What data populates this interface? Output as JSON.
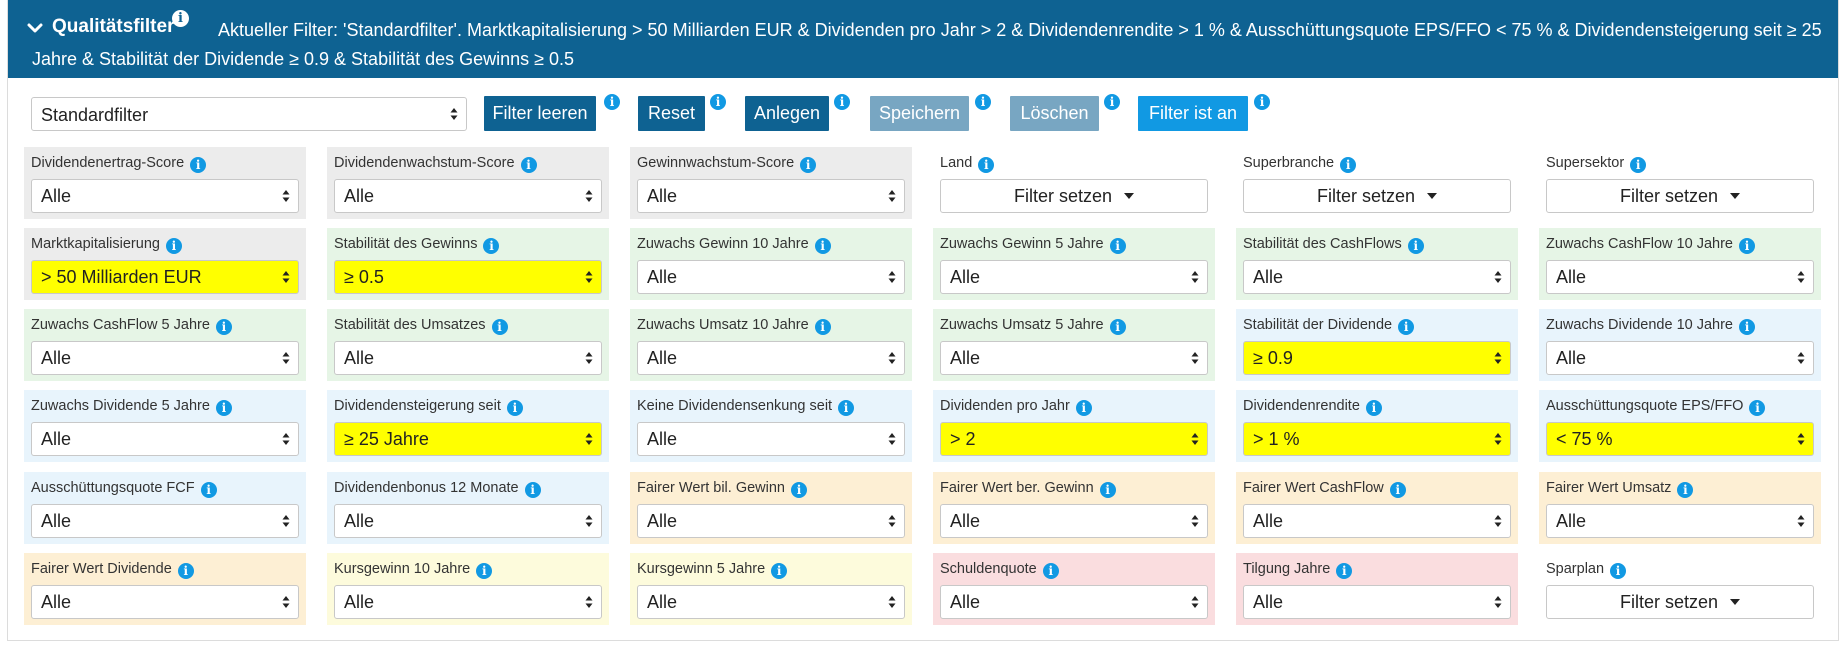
{
  "header": {
    "title": "Qualitätsfilter",
    "filter_line1": "Aktueller Filter: 'Standardfilter'. Marktkapitalisierung > 50 Milliarden EUR & Dividenden pro Jahr > 2 & Dividendenrendite > 1 % & Ausschüttungsquote EPS/FFO < 75 % & Dividendensteigerung seit ≥ 25",
    "filter_line2": "Jahre & Stabilität der Dividende ≥ 0.9 & Stabilität des Gewinns ≥ 0.5",
    "background": "#0e6292"
  },
  "toolbar": {
    "preset_value": "Standardfilter",
    "buttons": [
      {
        "label": "Filter leeren"
      },
      {
        "label": "Reset"
      },
      {
        "label": "Anlegen"
      },
      {
        "label": "Speichern"
      },
      {
        "label": "Löschen"
      },
      {
        "label": "Filter ist an"
      }
    ]
  },
  "info_glyph": "i",
  "filters": [
    {
      "label": "Dividendenertrag-Score",
      "value": "Alle"
    },
    {
      "label": "Dividendenwachstum-Score",
      "value": "Alle"
    },
    {
      "label": "Gewinnwachstum-Score",
      "value": "Alle"
    },
    {
      "label": "Land",
      "value": "Filter setzen"
    },
    {
      "label": "Superbranche",
      "value": "Filter setzen"
    },
    {
      "label": "Supersektor",
      "value": "Filter setzen"
    },
    {
      "label": "Marktkapitalisierung",
      "value": "> 50 Milliarden EUR"
    },
    {
      "label": "Stabilität des Gewinns",
      "value": "≥ 0.5"
    },
    {
      "label": "Zuwachs Gewinn 10 Jahre",
      "value": "Alle"
    },
    {
      "label": "Zuwachs Gewinn 5 Jahre",
      "value": "Alle"
    },
    {
      "label": "Stabilität des CashFlows",
      "value": "Alle"
    },
    {
      "label": "Zuwachs CashFlow 10 Jahre",
      "value": "Alle"
    },
    {
      "label": "Zuwachs CashFlow 5 Jahre",
      "value": "Alle"
    },
    {
      "label": "Stabilität des Umsatzes",
      "value": "Alle"
    },
    {
      "label": "Zuwachs Umsatz 10 Jahre",
      "value": "Alle"
    },
    {
      "label": "Zuwachs Umsatz 5 Jahre",
      "value": "Alle"
    },
    {
      "label": "Stabilität der Dividende",
      "value": "≥ 0.9"
    },
    {
      "label": "Zuwachs Dividende 10 Jahre",
      "value": "Alle"
    },
    {
      "label": "Zuwachs Dividende 5 Jahre",
      "value": "Alle"
    },
    {
      "label": "Dividendensteigerung seit",
      "value": "≥ 25 Jahre"
    },
    {
      "label": "Keine Dividendensenkung seit",
      "value": "Alle"
    },
    {
      "label": "Dividenden pro Jahr",
      "value": "> 2"
    },
    {
      "label": "Dividendenrendite",
      "value": "> 1 %"
    },
    {
      "label": "Ausschüttungsquote EPS/FFO",
      "value": "< 75 %"
    },
    {
      "label": "Ausschüttungsquote FCF",
      "value": "Alle"
    },
    {
      "label": "Dividendenbonus 12 Monate",
      "value": "Alle"
    },
    {
      "label": "Fairer Wert bil. Gewinn",
      "value": "Alle"
    },
    {
      "label": "Fairer Wert ber. Gewinn",
      "value": "Alle"
    },
    {
      "label": "Fairer Wert CashFlow",
      "value": "Alle"
    },
    {
      "label": "Fairer Wert Umsatz",
      "value": "Alle"
    },
    {
      "label": "Fairer Wert Dividende",
      "value": "Alle"
    },
    {
      "label": "Kursgewinn 10 Jahre",
      "value": "Alle"
    },
    {
      "label": "Kursgewinn 5 Jahre",
      "value": "Alle"
    },
    {
      "label": "Schuldenquote",
      "value": "Alle"
    },
    {
      "label": "Tilgung Jahre",
      "value": "Alle"
    },
    {
      "label": "Sparplan",
      "value": "Filter setzen"
    }
  ],
  "colors": {
    "highlight": "#ffff00",
    "info": "#1199e3",
    "button_dark": "#0e6292",
    "button_light": "#78a6c2",
    "button_bright": "#1199e3"
  }
}
